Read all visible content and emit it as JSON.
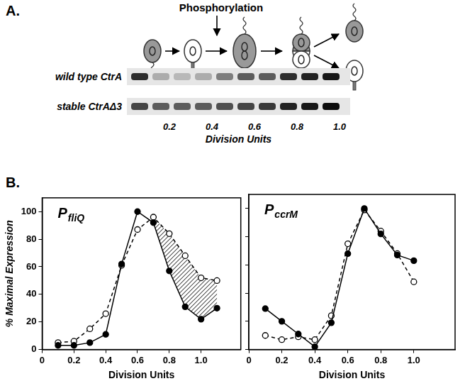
{
  "panel_a": {
    "label": "A.",
    "annotation": "Phosphorylation",
    "xlim": [
      0,
      1.05
    ],
    "xticks": [
      0.2,
      0.4,
      0.6,
      0.8,
      {
        "value": 1,
        "label": "1.0"
      }
    ],
    "x_label": "Division Units",
    "blots": [
      {
        "name": "wild type CtrA",
        "lanes": [
          0.06,
          0.16,
          0.26,
          0.36,
          0.46,
          0.56,
          0.66,
          0.76,
          0.86,
          0.96
        ],
        "intensity": [
          0.8,
          0.25,
          0.2,
          0.25,
          0.45,
          0.6,
          0.6,
          0.8,
          0.85,
          0.9
        ]
      },
      {
        "name": "stable CtrAΔ3",
        "lanes": [
          0.06,
          0.16,
          0.26,
          0.36,
          0.46,
          0.56,
          0.66,
          0.76,
          0.86,
          0.96
        ],
        "intensity": [
          0.7,
          0.6,
          0.6,
          0.6,
          0.65,
          0.7,
          0.75,
          0.85,
          0.9,
          0.95
        ]
      }
    ]
  },
  "panel_b_label": "B.",
  "chart_data": [
    {
      "type": "line",
      "title": {
        "text": "P",
        "subscript": "fliQ"
      },
      "x_label": "Division Units",
      "y_label": "% Maximal Expression",
      "x": [
        0.1,
        0.2,
        0.3,
        0.4,
        0.5,
        0.6,
        0.7,
        0.8,
        0.9,
        1.0,
        1.1
      ],
      "series": [
        {
          "color": "#000000",
          "marker": "filled_circle",
          "line_style": "solid",
          "values": [
            3,
            3,
            5,
            11,
            62,
            100,
            92,
            57,
            31,
            22,
            30
          ]
        },
        {
          "color": "#000000",
          "marker": "open_circle",
          "line_style": "dashed",
          "values": [
            5,
            6,
            15,
            26,
            61,
            87,
            96,
            84,
            68,
            52,
            50
          ]
        }
      ],
      "hatch_x": [
        0.7,
        1.1
      ],
      "xlim": [
        0,
        1.25
      ],
      "xticks": [
        0,
        0.2,
        0.4,
        0.6,
        0.8,
        {
          "value": 1,
          "label": "1.0"
        }
      ],
      "ylim": [
        0,
        110
      ],
      "yticks": [
        0,
        20,
        40,
        60,
        80,
        100
      ],
      "grid": false
    },
    {
      "type": "line",
      "title": {
        "text": "P",
        "subscript": "ccrM"
      },
      "x_label": "Division Units",
      "x": [
        0.1,
        0.2,
        0.3,
        0.4,
        0.5,
        0.6,
        0.7,
        0.8,
        0.9,
        1.0
      ],
      "series": [
        {
          "color": "#000000",
          "marker": "filled_circle",
          "line_style": "solid",
          "values": [
            29,
            20,
            11,
            2,
            19,
            68,
            100,
            82,
            67,
            63
          ]
        },
        {
          "color": "#000000",
          "marker": "open_circle",
          "line_style": "dashed",
          "values": [
            10,
            7,
            9,
            7,
            24,
            75,
            99,
            84,
            68,
            48
          ]
        }
      ],
      "xlim": [
        0,
        1.25
      ],
      "xticks": [
        0,
        0.2,
        0.4,
        0.6,
        0.8,
        {
          "value": 1,
          "label": "1.0"
        }
      ],
      "ylim": [
        0,
        110
      ],
      "yticks": [
        0,
        20,
        40,
        60,
        80,
        100
      ],
      "tick_labels": "x",
      "grid": false
    }
  ]
}
